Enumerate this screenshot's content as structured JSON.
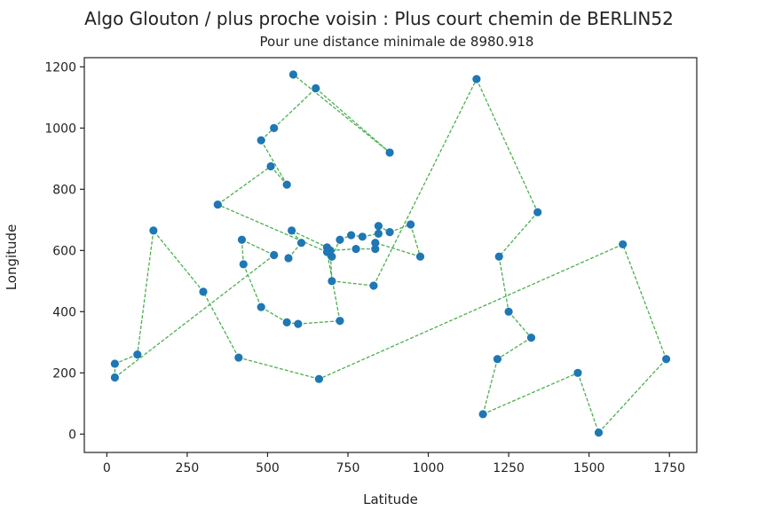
{
  "chart_data": {
    "type": "line",
    "title": "Algo Glouton / plus proche voisin : Plus court chemin de BERLIN52",
    "subtitle": "Pour une distance minimale de 8980.918",
    "xlabel": "Latitude",
    "ylabel": "Longitude",
    "xlim": [
      -70,
      1835
    ],
    "ylim": [
      -60,
      1230
    ],
    "xticks": [
      0,
      250,
      500,
      750,
      1000,
      1250,
      1500,
      1750
    ],
    "yticks": [
      0,
      200,
      400,
      600,
      800,
      1000,
      1200
    ],
    "grid": false,
    "line_color": "#4caf50",
    "marker_color": "#1f77b4",
    "route": [
      [
        565,
        575
      ],
      [
        605,
        625
      ],
      [
        575,
        665
      ],
      [
        685,
        610
      ],
      [
        700,
        580
      ],
      [
        725,
        635
      ],
      [
        760,
        650
      ],
      [
        795,
        645
      ],
      [
        845,
        655
      ],
      [
        845,
        680
      ],
      [
        880,
        660
      ],
      [
        945,
        685
      ],
      [
        975,
        580
      ],
      [
        835,
        625
      ],
      [
        835,
        605
      ],
      [
        775,
        605
      ],
      [
        695,
        600
      ],
      [
        700,
        500
      ],
      [
        830,
        485
      ],
      [
        1150,
        1160
      ],
      [
        1340,
        725
      ],
      [
        1220,
        580
      ],
      [
        1250,
        400
      ],
      [
        1320,
        315
      ],
      [
        1215,
        245
      ],
      [
        1170,
        65
      ],
      [
        1465,
        200
      ],
      [
        1530,
        5
      ],
      [
        1740,
        245
      ],
      [
        1605,
        620
      ],
      [
        660,
        180
      ],
      [
        410,
        250
      ],
      [
        300,
        465
      ],
      [
        145,
        665
      ],
      [
        95,
        260
      ],
      [
        25,
        230
      ],
      [
        25,
        185
      ],
      [
        520,
        585
      ],
      [
        420,
        635
      ],
      [
        425,
        555
      ],
      [
        480,
        415
      ],
      [
        560,
        365
      ],
      [
        595,
        360
      ],
      [
        725,
        370
      ],
      [
        685,
        595
      ],
      [
        345,
        750
      ],
      [
        510,
        875
      ],
      [
        560,
        815
      ],
      [
        480,
        960
      ],
      [
        520,
        1000
      ],
      [
        650,
        1130
      ],
      [
        880,
        920
      ],
      [
        580,
        1175
      ]
    ]
  }
}
